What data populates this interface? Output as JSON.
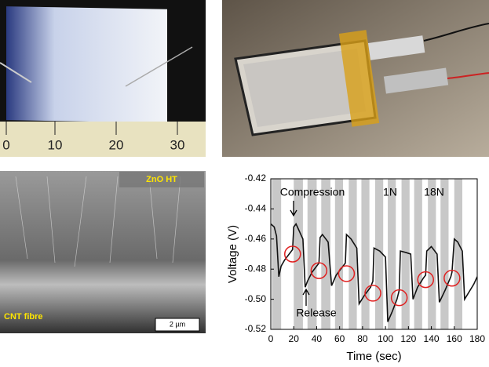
{
  "panels": {
    "ruler_labels": [
      "0",
      "10",
      "20",
      "30"
    ],
    "sem_top_label": "ZnO HT",
    "sem_bottom_label": "CNT fibre",
    "scale_bar": "2 µm"
  },
  "chart_data": {
    "type": "line",
    "xlabel": "Time (sec)",
    "ylabel": "Voltage (V)",
    "xlim": [
      0,
      180
    ],
    "ylim": [
      -0.52,
      -0.42
    ],
    "xticks": [
      0,
      20,
      40,
      60,
      80,
      100,
      120,
      140,
      160,
      180
    ],
    "yticks": [
      -0.52,
      {
        "value": -0.5,
        "label": "-0.50"
      },
      -0.48,
      -0.46,
      -0.44,
      -0.42
    ],
    "annotations": [
      "Compression",
      "Release",
      "1N",
      "18N"
    ],
    "shaded_intervals": [
      [
        1,
        9
      ],
      [
        20,
        28
      ],
      [
        32,
        40
      ],
      [
        44,
        52
      ],
      [
        56,
        63
      ],
      [
        68,
        75
      ],
      [
        79,
        86
      ],
      [
        91,
        98
      ],
      [
        102,
        109
      ],
      [
        114,
        121
      ],
      [
        125,
        132
      ],
      [
        137,
        144
      ],
      [
        148,
        155
      ],
      [
        160,
        167
      ]
    ],
    "series": [
      {
        "color": "#111111",
        "x": [
          0,
          3,
          5,
          7,
          9,
          12,
          16,
          19,
          20,
          22,
          25,
          28,
          30,
          32,
          36,
          40,
          42,
          43,
          45,
          50,
          53,
          57,
          62,
          65,
          66,
          70,
          75,
          77,
          82,
          87,
          89,
          90,
          95,
          100,
          102,
          106,
          110,
          112,
          113,
          118,
          122,
          124,
          128,
          133,
          135,
          136,
          140,
          145,
          147,
          152,
          157,
          158,
          160,
          163,
          167,
          169,
          173,
          177,
          180
        ],
        "values": [
          -0.45,
          -0.452,
          -0.458,
          -0.485,
          -0.478,
          -0.474,
          -0.47,
          -0.467,
          -0.452,
          -0.45,
          -0.455,
          -0.46,
          -0.492,
          -0.488,
          -0.482,
          -0.478,
          -0.476,
          -0.459,
          -0.457,
          -0.462,
          -0.491,
          -0.484,
          -0.479,
          -0.476,
          -0.457,
          -0.46,
          -0.466,
          -0.503,
          -0.497,
          -0.492,
          -0.488,
          -0.466,
          -0.468,
          -0.472,
          -0.515,
          -0.508,
          -0.5,
          -0.494,
          -0.468,
          -0.469,
          -0.47,
          -0.5,
          -0.492,
          -0.486,
          -0.484,
          -0.468,
          -0.465,
          -0.47,
          -0.502,
          -0.494,
          -0.485,
          -0.482,
          -0.46,
          -0.462,
          -0.468,
          -0.5,
          -0.495,
          -0.49,
          -0.485
        ]
      }
    ],
    "markers": {
      "color": "#e02020",
      "x": [
        19,
        42,
        66,
        89,
        112,
        135,
        158
      ],
      "values": [
        -0.47,
        -0.481,
        -0.483,
        -0.496,
        -0.499,
        -0.487,
        -0.486
      ]
    }
  }
}
